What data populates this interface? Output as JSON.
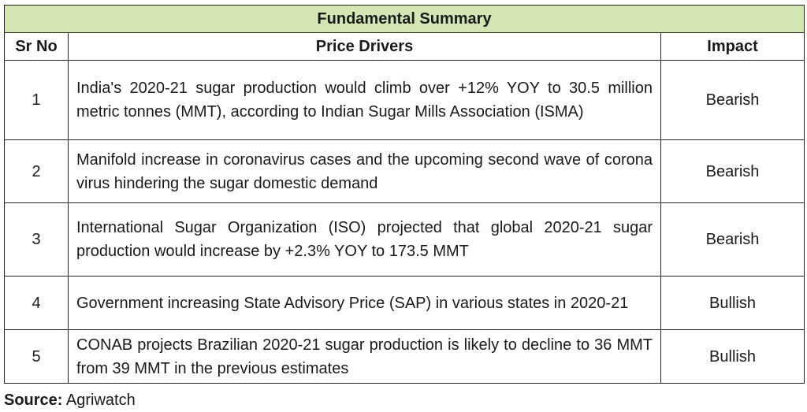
{
  "title": "Fundamental Summary",
  "headers": {
    "sr": "Sr No",
    "drivers": "Price Drivers",
    "impact": "Impact"
  },
  "rows": [
    {
      "sr": "1",
      "driver": "India's 2020-21 sugar production would climb over +12% YOY to 30.5 million metric tonnes (MMT), according to Indian Sugar Mills Association (ISMA)",
      "impact": "Bearish"
    },
    {
      "sr": "2",
      "driver": "Manifold increase in coronavirus cases and the upcoming second wave of corona virus hindering the sugar domestic demand",
      "impact": "Bearish"
    },
    {
      "sr": "3",
      "driver": "International Sugar Organization (ISO) projected that global 2020-21 sugar production would increase by +2.3% YOY to 173.5 MMT",
      "impact": "Bearish"
    },
    {
      "sr": "4",
      "driver": "Government increasing State Advisory Price (SAP) in various states in 2020-21",
      "impact": "Bullish"
    },
    {
      "sr": "5",
      "driver": "CONAB projects Brazilian 2020-21 sugar production is likely to decline to 36 MMT from 39 MMT in the previous estimates",
      "impact": "Bullish"
    }
  ],
  "source": {
    "label": "Source:",
    "value": "Agriwatch"
  },
  "colors": {
    "title_background": "#d3e6b3",
    "border": "#222222"
  }
}
